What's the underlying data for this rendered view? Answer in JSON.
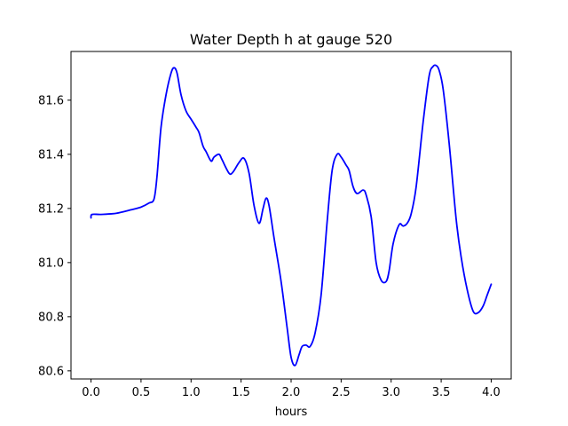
{
  "chart_data": {
    "type": "line",
    "title": "Water Depth h at gauge 520",
    "xlabel": "hours",
    "ylabel": "",
    "xlim": [
      -0.2,
      4.2
    ],
    "ylim": [
      80.57,
      81.78
    ],
    "xticks": [
      0.0,
      0.5,
      1.0,
      1.5,
      2.0,
      2.5,
      3.0,
      3.5,
      4.0
    ],
    "xtick_labels": [
      "0.0",
      "0.5",
      "1.0",
      "1.5",
      "2.0",
      "2.5",
      "3.0",
      "3.5",
      "4.0"
    ],
    "yticks": [
      80.6,
      80.8,
      81.0,
      81.2,
      81.4,
      81.6
    ],
    "ytick_labels": [
      "80.6",
      "80.8",
      "81.0",
      "81.2",
      "81.4",
      "81.6"
    ],
    "grid": false,
    "legend": "none",
    "series": [
      {
        "color": "#0000ff",
        "x": [
          0.0,
          0.01,
          0.1,
          0.25,
          0.4,
          0.5,
          0.58,
          0.63,
          0.66,
          0.7,
          0.75,
          0.8,
          0.83,
          0.86,
          0.9,
          0.95,
          1.0,
          1.05,
          1.08,
          1.12,
          1.15,
          1.2,
          1.23,
          1.28,
          1.31,
          1.38,
          1.42,
          1.48,
          1.53,
          1.58,
          1.63,
          1.68,
          1.72,
          1.75,
          1.78,
          1.83,
          1.9,
          1.96,
          2.0,
          2.04,
          2.08,
          2.11,
          2.15,
          2.19,
          2.24,
          2.3,
          2.36,
          2.41,
          2.46,
          2.5,
          2.55,
          2.58,
          2.62,
          2.66,
          2.72,
          2.75,
          2.8,
          2.85,
          2.9,
          2.95,
          2.98,
          3.02,
          3.08,
          3.12,
          3.16,
          3.2,
          3.25,
          3.32,
          3.38,
          3.42,
          3.45,
          3.48,
          3.52,
          3.58,
          3.65,
          3.7,
          3.76,
          3.82,
          3.87,
          3.92,
          3.96,
          4.0
        ],
        "y": [
          81.165,
          81.178,
          81.178,
          81.182,
          81.195,
          81.205,
          81.22,
          81.235,
          81.32,
          81.5,
          81.62,
          81.7,
          81.72,
          81.7,
          81.62,
          81.56,
          81.53,
          81.5,
          81.48,
          81.43,
          81.41,
          81.375,
          81.39,
          81.4,
          81.38,
          81.33,
          81.335,
          81.37,
          81.385,
          81.33,
          81.21,
          81.145,
          81.2,
          81.238,
          81.21,
          81.09,
          80.93,
          80.76,
          80.65,
          80.62,
          80.66,
          80.69,
          80.695,
          80.69,
          80.74,
          80.88,
          81.15,
          81.34,
          81.4,
          81.39,
          81.36,
          81.34,
          81.28,
          81.255,
          81.268,
          81.25,
          81.17,
          81.0,
          80.935,
          80.93,
          80.97,
          81.07,
          81.14,
          81.135,
          81.145,
          81.18,
          81.28,
          81.52,
          81.69,
          81.725,
          81.728,
          81.71,
          81.64,
          81.44,
          81.16,
          81.02,
          80.9,
          80.82,
          80.815,
          80.84,
          80.88,
          80.92
        ]
      }
    ]
  }
}
